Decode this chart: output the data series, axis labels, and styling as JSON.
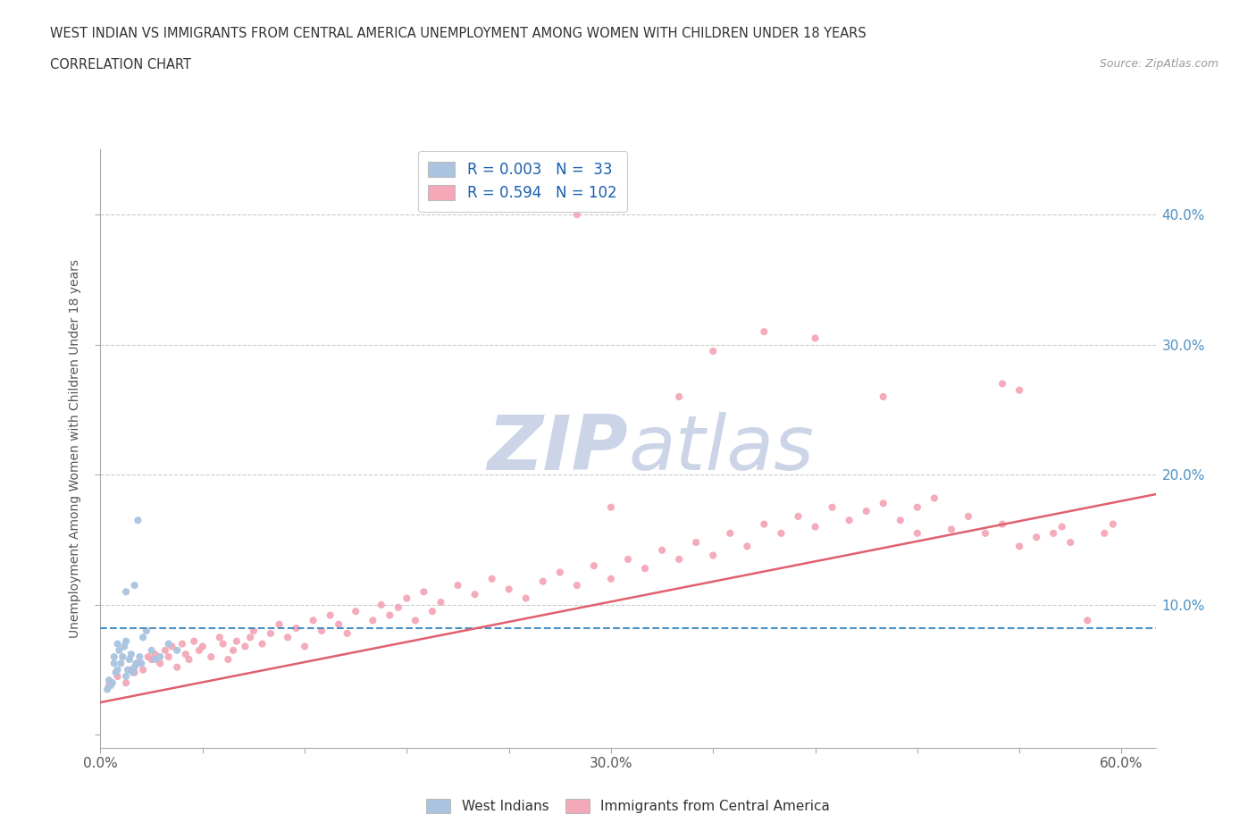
{
  "title_line1": "WEST INDIAN VS IMMIGRANTS FROM CENTRAL AMERICA UNEMPLOYMENT AMONG WOMEN WITH CHILDREN UNDER 18 YEARS",
  "title_line2": "CORRELATION CHART",
  "source": "Source: ZipAtlas.com",
  "ylabel": "Unemployment Among Women with Children Under 18 years",
  "xlim": [
    0.0,
    0.62
  ],
  "ylim": [
    -0.01,
    0.45
  ],
  "blue_color": "#aac4e0",
  "pink_color": "#f4a8b8",
  "blue_line_color": "#4a90c4",
  "pink_line_color": "#e06070",
  "N1": 33,
  "N2": 102,
  "R1": 0.003,
  "R2": 0.594,
  "watermark_zip": "ZIP",
  "watermark_atlas": "atlas",
  "watermark_color": "#ccd5e8",
  "background_color": "#ffffff",
  "grid_color": "#cccccc",
  "grid_style": "--",
  "ytick_right_vals": [
    0.1,
    0.2,
    0.3,
    0.4
  ],
  "ytick_right_labels": [
    "10.0%",
    "20.0%",
    "30.0%",
    "40.0%"
  ],
  "xtick_vals": [
    0.0,
    0.06,
    0.12,
    0.18,
    0.24,
    0.3,
    0.36,
    0.42,
    0.48,
    0.54,
    0.6
  ],
  "xtick_show": [
    0.0,
    0.3,
    0.6
  ],
  "blue_line_y": 0.082,
  "pink_line_x0": 0.0,
  "pink_line_y0": 0.025,
  "pink_line_x1": 0.62,
  "pink_line_y1": 0.185,
  "blue_x": [
    0.004,
    0.005,
    0.006,
    0.007,
    0.008,
    0.008,
    0.009,
    0.01,
    0.01,
    0.011,
    0.012,
    0.013,
    0.014,
    0.015,
    0.015,
    0.016,
    0.017,
    0.018,
    0.019,
    0.02,
    0.021,
    0.022,
    0.023,
    0.024,
    0.025,
    0.027,
    0.03,
    0.032,
    0.035,
    0.04,
    0.045,
    0.02,
    0.015
  ],
  "blue_y": [
    0.035,
    0.042,
    0.038,
    0.04,
    0.055,
    0.06,
    0.048,
    0.05,
    0.07,
    0.065,
    0.055,
    0.06,
    0.068,
    0.072,
    0.045,
    0.05,
    0.058,
    0.062,
    0.048,
    0.052,
    0.055,
    0.165,
    0.06,
    0.055,
    0.075,
    0.08,
    0.065,
    0.058,
    0.06,
    0.07,
    0.065,
    0.115,
    0.11
  ],
  "pink_x": [
    0.005,
    0.01,
    0.015,
    0.018,
    0.02,
    0.022,
    0.025,
    0.028,
    0.03,
    0.032,
    0.035,
    0.038,
    0.04,
    0.042,
    0.045,
    0.048,
    0.05,
    0.052,
    0.055,
    0.058,
    0.06,
    0.065,
    0.07,
    0.072,
    0.075,
    0.078,
    0.08,
    0.085,
    0.088,
    0.09,
    0.095,
    0.1,
    0.105,
    0.11,
    0.115,
    0.12,
    0.125,
    0.13,
    0.135,
    0.14,
    0.145,
    0.15,
    0.16,
    0.165,
    0.17,
    0.175,
    0.18,
    0.185,
    0.19,
    0.195,
    0.2,
    0.21,
    0.22,
    0.23,
    0.24,
    0.25,
    0.26,
    0.27,
    0.28,
    0.29,
    0.3,
    0.31,
    0.32,
    0.33,
    0.34,
    0.35,
    0.36,
    0.37,
    0.38,
    0.39,
    0.4,
    0.41,
    0.42,
    0.43,
    0.44,
    0.45,
    0.46,
    0.47,
    0.48,
    0.49,
    0.5,
    0.51,
    0.52,
    0.53,
    0.54,
    0.55,
    0.56,
    0.565,
    0.57,
    0.58,
    0.59,
    0.595,
    0.54,
    0.53,
    0.48,
    0.46,
    0.42,
    0.39,
    0.36,
    0.34,
    0.3,
    0.28
  ],
  "pink_y": [
    0.038,
    0.045,
    0.04,
    0.05,
    0.048,
    0.055,
    0.05,
    0.06,
    0.058,
    0.062,
    0.055,
    0.065,
    0.06,
    0.068,
    0.052,
    0.07,
    0.062,
    0.058,
    0.072,
    0.065,
    0.068,
    0.06,
    0.075,
    0.07,
    0.058,
    0.065,
    0.072,
    0.068,
    0.075,
    0.08,
    0.07,
    0.078,
    0.085,
    0.075,
    0.082,
    0.068,
    0.088,
    0.08,
    0.092,
    0.085,
    0.078,
    0.095,
    0.088,
    0.1,
    0.092,
    0.098,
    0.105,
    0.088,
    0.11,
    0.095,
    0.102,
    0.115,
    0.108,
    0.12,
    0.112,
    0.105,
    0.118,
    0.125,
    0.115,
    0.13,
    0.12,
    0.135,
    0.128,
    0.142,
    0.135,
    0.148,
    0.138,
    0.155,
    0.145,
    0.162,
    0.155,
    0.168,
    0.16,
    0.175,
    0.165,
    0.172,
    0.178,
    0.165,
    0.175,
    0.182,
    0.158,
    0.168,
    0.155,
    0.162,
    0.145,
    0.152,
    0.155,
    0.16,
    0.148,
    0.088,
    0.155,
    0.162,
    0.265,
    0.27,
    0.155,
    0.26,
    0.305,
    0.31,
    0.295,
    0.26,
    0.175,
    0.4
  ]
}
